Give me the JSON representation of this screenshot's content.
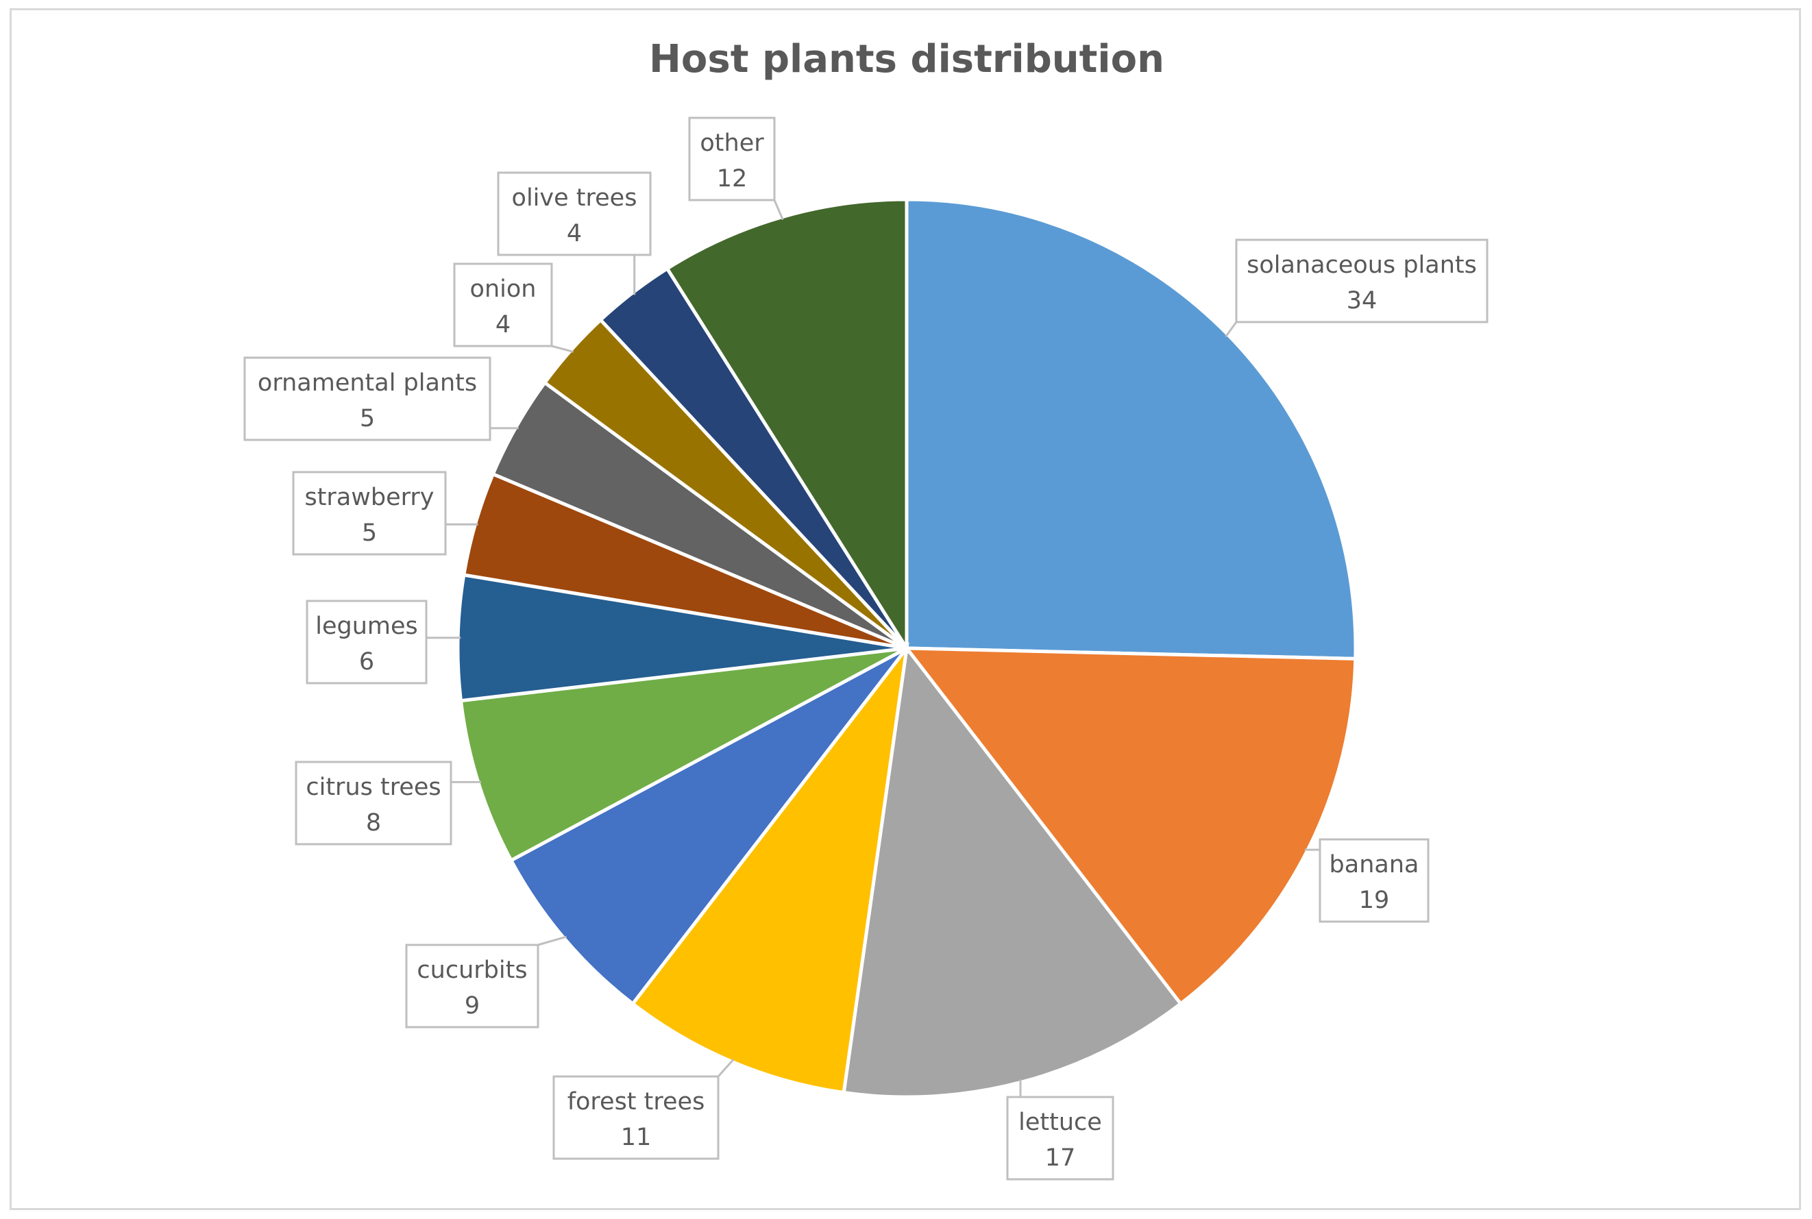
{
  "chart_data": {
    "type": "pie",
    "title": "Host plants distribution",
    "categories": [
      "solanaceous plants",
      "banana",
      "lettuce",
      "forest trees",
      "cucurbits",
      "citrus trees",
      "legumes",
      "strawberry",
      "ornamental plants",
      "onion",
      "olive trees",
      "other"
    ],
    "values": [
      34,
      19,
      17,
      11,
      9,
      8,
      6,
      5,
      5,
      4,
      4,
      12
    ],
    "colors": [
      "#5b9bd5",
      "#ed7d31",
      "#a5a5a5",
      "#ffc000",
      "#4472c4",
      "#70ad47",
      "#255e91",
      "#9e480e",
      "#636363",
      "#997300",
      "#264478",
      "#43682b"
    ],
    "data_labels": [
      {
        "name": "solanaceous plants",
        "value": "34"
      },
      {
        "name": "banana",
        "value": "19"
      },
      {
        "name": "lettuce",
        "value": "17"
      },
      {
        "name": "forest trees",
        "value": "11"
      },
      {
        "name": "cucurbits",
        "value": "9"
      },
      {
        "name": "citrus trees",
        "value": "8"
      },
      {
        "name": "legumes",
        "value": "6"
      },
      {
        "name": "strawberry",
        "value": "5"
      },
      {
        "name": "ornamental plants",
        "value": "5"
      },
      {
        "name": "onion",
        "value": "4"
      },
      {
        "name": "olive trees",
        "value": "4"
      },
      {
        "name": "other",
        "value": "12"
      }
    ],
    "legend": "none"
  }
}
